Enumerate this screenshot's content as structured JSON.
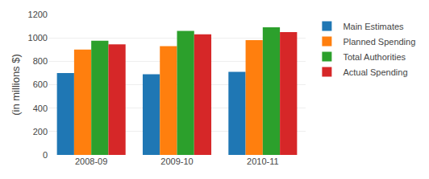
{
  "chart_data": {
    "type": "bar",
    "categories": [
      "2008-09",
      "2009-10",
      "2010-11"
    ],
    "series": [
      {
        "name": "Main Estimates",
        "values": [
          700,
          690,
          710
        ]
      },
      {
        "name": "Planned Spending",
        "values": [
          900,
          930,
          980
        ]
      },
      {
        "name": "Total Authorities",
        "values": [
          975,
          1060,
          1090
        ]
      },
      {
        "name": "Actual Spending",
        "values": [
          945,
          1030,
          1050
        ]
      }
    ],
    "ylabel": "(in millions $)",
    "ylim": [
      0,
      1200
    ],
    "yticks": [
      0,
      200,
      400,
      600,
      800,
      1000,
      1200
    ],
    "grid": true,
    "legend": "right"
  }
}
